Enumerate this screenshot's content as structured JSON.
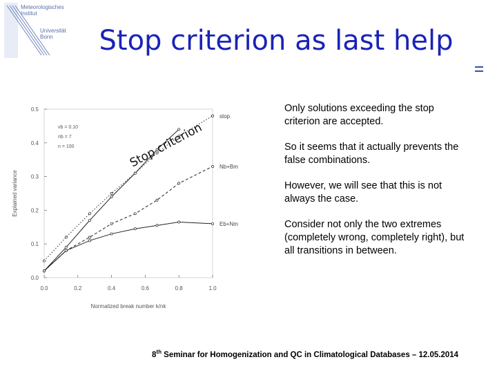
{
  "logo": {
    "line1": "Meteorologisches",
    "line2": "Institut",
    "line3": "Universität",
    "line4": "Bonn"
  },
  "slide": {
    "title": "Stop criterion as last help"
  },
  "bullets": [
    "Only solutions exceeding the stop criterion are accepted.",
    "So it seems that it actually prevents the false combinations.",
    "However, we will see that this is not always the case.",
    "Consider not only the two extremes (completely wrong, completely right), but all transitions in between."
  ],
  "footer": {
    "prefix": "8",
    "sup": "th",
    "text": " Seminar for Homogenization and QC in Climatological Databases – 12.05.2014"
  },
  "chart_data": {
    "type": "line",
    "xlabel": "Normalized break number k/nk",
    "ylabel": "Explained variance",
    "xlim": [
      0.0,
      1.0
    ],
    "ylim": [
      0.0,
      0.5
    ],
    "x_ticks": [
      "0.0",
      "0.2",
      "0.4",
      "0.6",
      "0.8",
      "1.0"
    ],
    "y_ticks": [
      "0.0",
      "0.1",
      "0.2",
      "0.3",
      "0.4",
      "0.5"
    ],
    "legend_params": [
      "vb = 0.10",
      "nb = 7",
      "n = 100"
    ],
    "annotation": "Stop criterion",
    "series": [
      {
        "name": "stop",
        "x": [
          0.0,
          0.13,
          0.27,
          0.4,
          0.54,
          0.67,
          0.8,
          1.0
        ],
        "y": [
          0.05,
          0.12,
          0.19,
          0.25,
          0.31,
          0.37,
          0.42,
          0.48
        ],
        "style": "dotted"
      },
      {
        "name": "Nb+Bm",
        "x": [
          0.0,
          0.13,
          0.27,
          0.4,
          0.54,
          0.67,
          0.8,
          1.0
        ],
        "y": [
          0.02,
          0.08,
          0.12,
          0.16,
          0.19,
          0.23,
          0.28,
          0.33
        ],
        "style": "dashed"
      },
      {
        "name": "Eb+Nm",
        "x": [
          0.0,
          0.13,
          0.27,
          0.4,
          0.54,
          0.67,
          0.8,
          1.0
        ],
        "y": [
          0.02,
          0.08,
          0.11,
          0.13,
          0.145,
          0.155,
          0.165,
          0.16
        ],
        "style": "solid"
      },
      {
        "name": "",
        "x": [
          0.0,
          0.13,
          0.27,
          0.4,
          0.54,
          0.67,
          0.8
        ],
        "y": [
          0.02,
          0.09,
          0.17,
          0.24,
          0.31,
          0.38,
          0.44
        ],
        "style": "solid"
      }
    ]
  }
}
